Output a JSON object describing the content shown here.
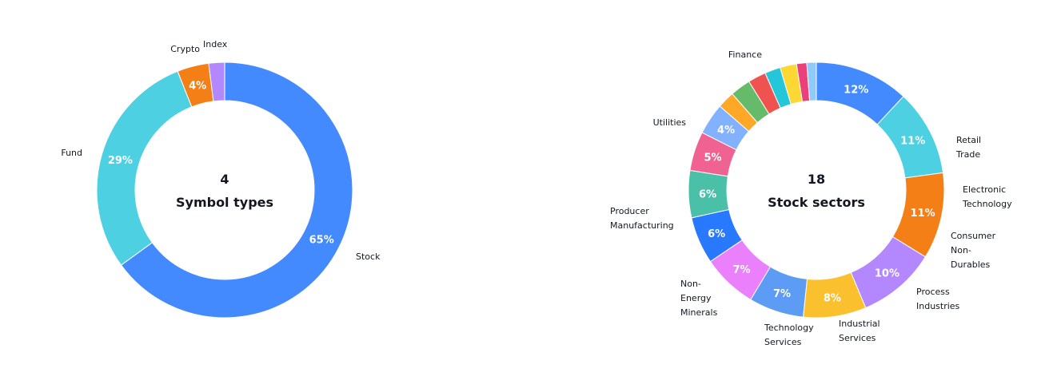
{
  "chart_data": [
    {
      "type": "pie",
      "donut": true,
      "title": "",
      "center": {
        "count": "4",
        "label": "Symbol types"
      },
      "slices": [
        {
          "label": "Stock",
          "value": 65,
          "pct_label": "65%",
          "color": "#448aff"
        },
        {
          "label": "Fund",
          "value": 29,
          "pct_label": "29%",
          "color": "#4dd0e1"
        },
        {
          "label": "Crypto",
          "value": 4,
          "pct_label": "4%",
          "color": "#f57f17"
        },
        {
          "label": "Index",
          "value": 2,
          "pct_label": "",
          "color": "#b388ff"
        }
      ]
    },
    {
      "type": "pie",
      "donut": true,
      "title": "",
      "center": {
        "count": "18",
        "label": "Stock sectors"
      },
      "slices": [
        {
          "label": "Finance",
          "value": 12,
          "pct_label": "12%",
          "color": "#448aff"
        },
        {
          "label": "Utilities",
          "value": 11,
          "pct_label": "11%",
          "color": "#4dd0e1"
        },
        {
          "label": "Producer Manufacturing",
          "value": 11,
          "pct_label": "11%",
          "color": "#f57f17"
        },
        {
          "label": "Non-Energy Minerals",
          "value": 10,
          "pct_label": "10%",
          "color": "#b388ff"
        },
        {
          "label": "Technology Services",
          "value": 8,
          "pct_label": "8%",
          "color": "#fbc02d"
        },
        {
          "label": "Industrial Services",
          "value": 7,
          "pct_label": "7%",
          "color": "#5c9cf5"
        },
        {
          "label": "Process Industries",
          "value": 7,
          "pct_label": "7%",
          "color": "#ea80fc"
        },
        {
          "label": "Consumer Non-Durables",
          "value": 6,
          "pct_label": "6%",
          "color": "#2979ff"
        },
        {
          "label": "Electronic Technology",
          "value": 6,
          "pct_label": "6%",
          "color": "#4bc0a8"
        },
        {
          "label": "Retail Trade",
          "value": 5,
          "pct_label": "5%",
          "color": "#f06292"
        },
        {
          "label": "",
          "value": 4,
          "pct_label": "4%",
          "color": "#82b1ff"
        },
        {
          "label": "",
          "value": 2.2,
          "pct_label": "",
          "color": "#ffa726"
        },
        {
          "label": "",
          "value": 2.6,
          "pct_label": "",
          "color": "#66bb6a"
        },
        {
          "label": "",
          "value": 2.3,
          "pct_label": "",
          "color": "#ef5350"
        },
        {
          "label": "",
          "value": 2.0,
          "pct_label": "",
          "color": "#26c6da"
        },
        {
          "label": "",
          "value": 2.1,
          "pct_label": "",
          "color": "#fdd835"
        },
        {
          "label": "",
          "value": 1.3,
          "pct_label": "",
          "color": "#ec407a"
        },
        {
          "label": "",
          "value": 1.2,
          "pct_label": "",
          "color": "#90caf9"
        }
      ]
    }
  ]
}
